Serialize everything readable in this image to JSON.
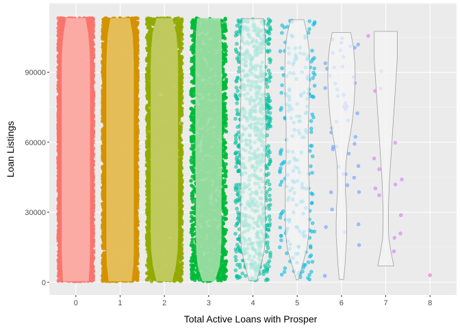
{
  "chart_data": {
    "type": "violin-jitter",
    "title": "",
    "xlabel": "Total Active Loans with Prosper",
    "ylabel": "Loan Listings",
    "x_ticks": [
      "0",
      "1",
      "2",
      "3",
      "4",
      "5",
      "6",
      "7",
      "8"
    ],
    "y_ticks": [
      0,
      30000,
      60000,
      90000
    ],
    "y_tick_labels": [
      "0",
      "30000",
      "60000",
      "90000"
    ],
    "xlim": [
      -0.6,
      8.6
    ],
    "ylim": [
      -5500,
      119500
    ],
    "grid": true,
    "legend": "none",
    "groups": [
      {
        "x": 0,
        "count": 9000,
        "ymin": 400,
        "ymax": 113200,
        "color": "#F8766D",
        "violin_fill": "#FCAFA9",
        "violin_widths": [
          0.29,
          0.31,
          0.32,
          0.32,
          0.32,
          0.32,
          0.32,
          0.32,
          0.32,
          0.32,
          0.32,
          0.32,
          0.32,
          0.32,
          0.32,
          0.31,
          0.28,
          0.22
        ]
      },
      {
        "x": 1,
        "count": 6000,
        "ymin": 400,
        "ymax": 113200,
        "color": "#D39200",
        "violin_fill": "#E6C15F",
        "violin_widths": [
          0.26,
          0.3,
          0.31,
          0.31,
          0.31,
          0.31,
          0.31,
          0.31,
          0.31,
          0.31,
          0.31,
          0.31,
          0.31,
          0.31,
          0.31,
          0.3,
          0.28,
          0.22
        ]
      },
      {
        "x": 2,
        "count": 4200,
        "ymin": 400,
        "ymax": 113200,
        "color": "#93AA00",
        "violin_fill": "#C2CC66",
        "violin_widths": [
          0.18,
          0.26,
          0.3,
          0.31,
          0.31,
          0.31,
          0.31,
          0.31,
          0.31,
          0.31,
          0.31,
          0.31,
          0.31,
          0.31,
          0.31,
          0.3,
          0.27,
          0.18
        ]
      },
      {
        "x": 3,
        "count": 2200,
        "ymin": 400,
        "ymax": 113200,
        "color": "#00BA38",
        "violin_fill": "#9FDDA6",
        "violin_widths": [
          0.14,
          0.25,
          0.28,
          0.29,
          0.29,
          0.29,
          0.29,
          0.3,
          0.3,
          0.3,
          0.3,
          0.3,
          0.3,
          0.3,
          0.3,
          0.3,
          0.29,
          0.26
        ]
      },
      {
        "x": 4,
        "count": 800,
        "ymin": 700,
        "ymax": 113000,
        "color": "#00C19F",
        "violin_fill": "#EEF4F2",
        "violin_widths": [
          0.09,
          0.18,
          0.26,
          0.28,
          0.28,
          0.27,
          0.27,
          0.27,
          0.28,
          0.29,
          0.29,
          0.28,
          0.27,
          0.27,
          0.28,
          0.28,
          0.27,
          0.24
        ]
      },
      {
        "x": 5,
        "count": 230,
        "ymin": 1000,
        "ymax": 112500,
        "color": "#00B9E3",
        "violin_fill": "#F4F4F5",
        "violin_widths": [
          0.02,
          0.12,
          0.22,
          0.26,
          0.27,
          0.27,
          0.27,
          0.26,
          0.25,
          0.25,
          0.25,
          0.26,
          0.27,
          0.28,
          0.28,
          0.27,
          0.23,
          0.15
        ]
      },
      {
        "x": 6,
        "count": 50,
        "ymin": 1200,
        "ymax": 107000,
        "color": "#619CFF",
        "violin_fill": "#F5F5F7",
        "violin_widths": [
          0.05,
          0.08,
          0.1,
          0.12,
          0.12,
          0.11,
          0.09,
          0.09,
          0.1,
          0.14,
          0.2,
          0.25,
          0.28,
          0.3,
          0.31,
          0.3,
          0.27,
          0.21
        ]
      },
      {
        "x": 7,
        "count": 15,
        "ymin": 7000,
        "ymax": 107500,
        "color": "#DB72FB",
        "violin_fill": "#F4F4F5",
        "violin_widths": [
          0.18,
          0.12,
          0.07,
          0.06,
          0.06,
          0.07,
          0.08,
          0.1,
          0.12,
          0.14,
          0.16,
          0.18,
          0.2,
          0.22,
          0.24,
          0.26,
          0.26,
          0.26
        ]
      },
      {
        "x": 8,
        "count": 1,
        "ymin": 3000,
        "ymax": 3000,
        "color": "#FF61C3",
        "violin_fill": "none",
        "violin_widths": []
      }
    ]
  }
}
